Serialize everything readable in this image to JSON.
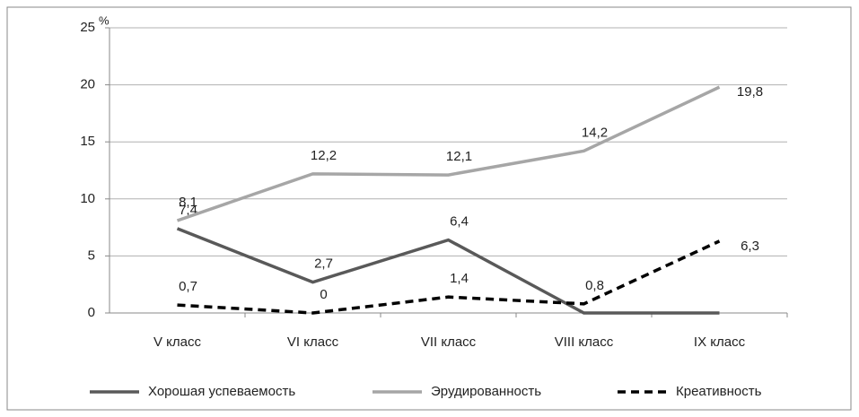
{
  "chart_data": {
    "type": "line",
    "y_unit": "%",
    "categories": [
      "V класс",
      "VI класс",
      "VII класс",
      "VIII класс",
      "IX класс"
    ],
    "series": [
      {
        "name": "Хорошая успеваемость",
        "color": "#595959",
        "dash": false,
        "values": [
          7.4,
          2.7,
          6.4,
          0,
          0
        ],
        "value_labels": [
          "7,4",
          "2,7",
          "6,4",
          null,
          null
        ]
      },
      {
        "name": "Эрудированность",
        "color": "#a6a6a6",
        "dash": false,
        "values": [
          8.1,
          12.2,
          12.1,
          14.2,
          19.8
        ],
        "value_labels": [
          "8,1",
          "12,2",
          "12,1",
          "14,2",
          "19,8"
        ]
      },
      {
        "name": "Креативность",
        "color": "#000000",
        "dash": true,
        "values": [
          0.7,
          0,
          1.4,
          0.8,
          6.3
        ],
        "value_labels": [
          "0,7",
          "0",
          "1,4",
          "0,8",
          "6,3"
        ]
      }
    ],
    "ylim": [
      0,
      25
    ],
    "yticks": [
      0,
      5,
      10,
      15,
      20,
      25
    ],
    "grid": true,
    "legend": "bottom"
  }
}
